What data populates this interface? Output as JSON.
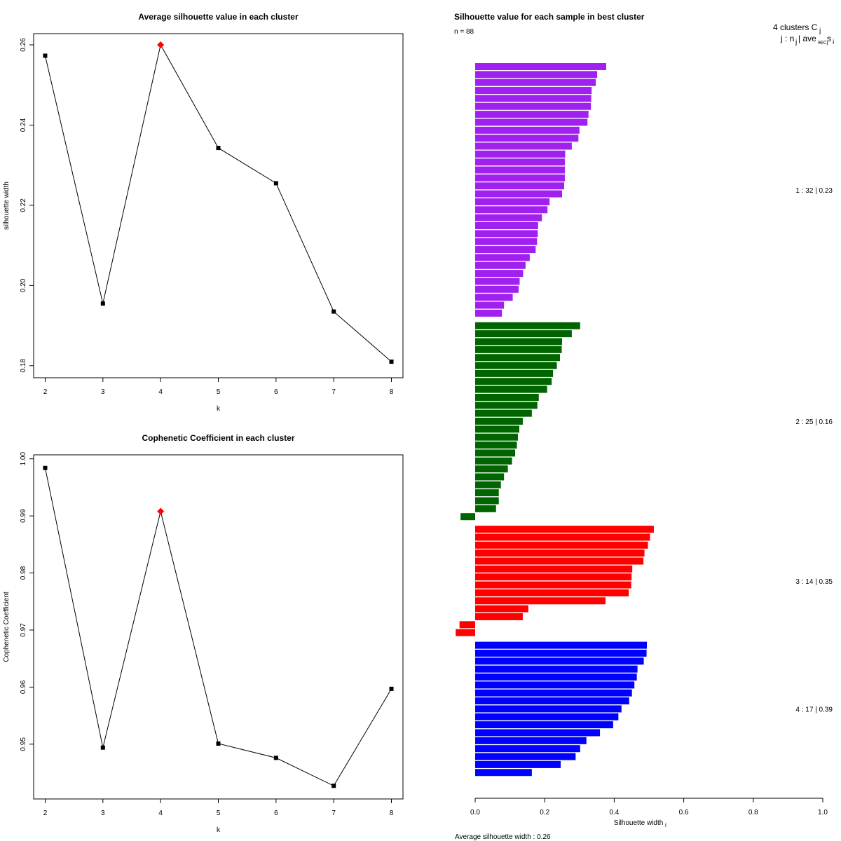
{
  "chart_data": [
    {
      "type": "line",
      "title": "Average silhouette value in each cluster",
      "xlabel": "k",
      "ylabel": "silhouette width",
      "x": [
        2,
        3,
        4,
        5,
        6,
        7,
        8
      ],
      "y": [
        0.2573,
        0.1955,
        0.26,
        0.2343,
        0.2255,
        0.1935,
        0.181
      ],
      "best_k": 4,
      "best_color": "#ff0000",
      "line_color": "#000000",
      "xlim": [
        1.8,
        8.2
      ],
      "ylim": [
        0.177,
        0.2628
      ],
      "xticks": [
        "2",
        "3",
        "4",
        "5",
        "6",
        "7",
        "8"
      ],
      "yticks": [
        "0.18",
        "0.20",
        "0.22",
        "0.24",
        "0.26"
      ]
    },
    {
      "type": "line",
      "title": "Cophenetic Coefficient in each cluster",
      "xlabel": "k",
      "ylabel": "Cophenetic Coefficient",
      "x": [
        2,
        3,
        4,
        5,
        6,
        7,
        8
      ],
      "y": [
        0.9984,
        0.9494,
        0.9908,
        0.9501,
        0.9476,
        0.9427,
        0.9597
      ],
      "best_k": 4,
      "best_color": "#ff0000",
      "line_color": "#000000",
      "xlim": [
        1.8,
        8.2
      ],
      "ylim": [
        0.9404,
        1.0007
      ],
      "xticks": [
        "2",
        "3",
        "4",
        "5",
        "6",
        "7",
        "8"
      ],
      "yticks": [
        "0.95",
        "0.96",
        "0.97",
        "0.98",
        "0.99",
        "1.00"
      ]
    },
    {
      "type": "bar",
      "orientation": "horizontal",
      "title": "Silhouette value for each sample in best cluster",
      "n_label": "n = 88",
      "xlabel": "Silhouette width",
      "xlabel_sub": "i",
      "xlim": [
        0,
        1
      ],
      "xticks": [
        "0.0",
        "0.2",
        "0.4",
        "0.6",
        "0.8",
        "1.0"
      ],
      "legend_line1": "4  clusters  C",
      "legend_line1_sub": "j",
      "legend_line2": "j :  n",
      "legend_line2_sub": "j",
      "legend_line2_rest": " | ave",
      "legend_line2_sub2": "i∈Cj",
      "legend_line2_end": " s",
      "legend_line2_sub3": "i",
      "footer": "Average silhouette width :  0.26",
      "clusters": [
        {
          "id": 1,
          "n": 32,
          "avg": 0.23,
          "color": "#a020f0",
          "label": "1 :   32  |  0.23",
          "values": [
            0.377,
            0.351,
            0.347,
            0.335,
            0.334,
            0.333,
            0.326,
            0.323,
            0.3,
            0.297,
            0.278,
            0.259,
            0.258,
            0.258,
            0.258,
            0.256,
            0.25,
            0.214,
            0.208,
            0.192,
            0.181,
            0.18,
            0.178,
            0.174,
            0.157,
            0.145,
            0.138,
            0.128,
            0.125,
            0.108,
            0.083,
            0.077
          ]
        },
        {
          "id": 2,
          "n": 25,
          "avg": 0.16,
          "color": "#006400",
          "label": "2 :   25  |  0.16",
          "values": [
            0.302,
            0.278,
            0.25,
            0.249,
            0.244,
            0.235,
            0.224,
            0.22,
            0.207,
            0.183,
            0.179,
            0.163,
            0.137,
            0.127,
            0.123,
            0.12,
            0.115,
            0.106,
            0.094,
            0.083,
            0.074,
            0.068,
            0.068,
            0.06,
            -0.042
          ]
        },
        {
          "id": 3,
          "n": 14,
          "avg": 0.35,
          "color": "#ff0000",
          "label": "3 :   14  |  0.35",
          "values": [
            0.514,
            0.503,
            0.497,
            0.487,
            0.484,
            0.452,
            0.45,
            0.449,
            0.442,
            0.375,
            0.153,
            0.137,
            -0.045,
            -0.056
          ]
        },
        {
          "id": 4,
          "n": 17,
          "avg": 0.39,
          "color": "#0000ff",
          "label": "4 :   17  |  0.39",
          "values": [
            0.494,
            0.493,
            0.485,
            0.467,
            0.465,
            0.458,
            0.451,
            0.443,
            0.421,
            0.412,
            0.397,
            0.359,
            0.32,
            0.302,
            0.289,
            0.246,
            0.163
          ]
        }
      ]
    }
  ]
}
